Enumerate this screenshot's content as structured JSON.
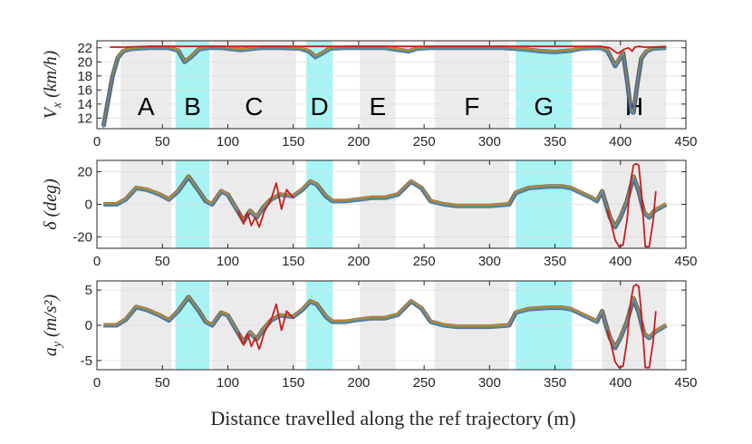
{
  "chart_data": {
    "type": "line",
    "xlabel": "Distance travelled along the ref trajectory (m)",
    "xlim": [
      0,
      450
    ],
    "xticks": [
      0,
      50,
      100,
      150,
      200,
      250,
      300,
      350,
      400,
      450
    ],
    "colors": {
      "gray_region": "#ebebeb",
      "cyan_region": "#a8f4f4",
      "curve_base": "#4a4a4a",
      "curve_red": "#c81e1e",
      "curve_blue": "#4f7fc0",
      "curve_orange": "#d8892a",
      "curve_green": "#6aa84f"
    },
    "regions": [
      {
        "label": "A",
        "x0": 18,
        "x1": 57,
        "kind": "gray"
      },
      {
        "label": "B",
        "x0": 60,
        "x1": 86,
        "kind": "cyan"
      },
      {
        "label": "C",
        "x0": 88,
        "x1": 152,
        "kind": "gray"
      },
      {
        "label": "D",
        "x0": 160,
        "x1": 180,
        "kind": "cyan"
      },
      {
        "label": "E",
        "x0": 201,
        "x1": 228,
        "kind": "gray"
      },
      {
        "label": "F",
        "x0": 258,
        "x1": 315,
        "kind": "gray"
      },
      {
        "label": "G",
        "x0": 320,
        "x1": 363,
        "kind": "cyan"
      },
      {
        "label": "H",
        "x0": 386,
        "x1": 435,
        "kind": "gray"
      }
    ],
    "panels": [
      {
        "ylabel": "V_x (km/h)",
        "ylabel_parts": [
          "V",
          "x",
          " (km/h)"
        ],
        "ylim": [
          10.5,
          23
        ],
        "yticks": [
          12,
          14,
          16,
          18,
          20,
          22
        ],
        "show_region_labels": true,
        "series": [
          {
            "x": [
              5,
              8,
              12,
              16,
              20,
              25,
              30,
              40,
              55,
              62,
              67,
              72,
              78,
              85,
              95,
              110,
              125,
              140,
              155,
              162,
              167,
              172,
              178,
              190,
              220,
              238,
              245,
              255,
              280,
              310,
              325,
              340,
              350,
              362,
              370,
              385,
              390,
              393,
              396,
              399,
              402,
              405,
              408,
              410,
              413,
              416,
              420,
              425,
              435
            ],
            "y": [
              10.8,
              14,
              18,
              20.6,
              21.5,
              21.8,
              21.9,
              22.0,
              22.0,
              21.6,
              20.0,
              20.7,
              21.8,
              22.0,
              22.0,
              21.7,
              22.0,
              22.0,
              21.9,
              21.5,
              20.7,
              21.2,
              21.9,
              22.0,
              22.0,
              21.5,
              21.9,
              22.0,
              22.0,
              22.0,
              21.8,
              21.5,
              21.4,
              21.6,
              21.9,
              22.0,
              21.6,
              20.5,
              19.4,
              20.3,
              21.3,
              17.5,
              13.0,
              12.8,
              17.0,
              20.5,
              21.5,
              21.9,
              22.0
            ]
          },
          {
            "x": [
              10,
              20,
              40,
              60,
              100,
              150,
              200,
              250,
              300,
              350,
              385,
              392,
              398,
              403,
              406,
              409,
              411,
              414,
              418,
              435
            ],
            "y": [
              22.1,
              22.1,
              22.2,
              22.2,
              22.2,
              22.2,
              22.2,
              22.2,
              22.2,
              22.2,
              22.2,
              22.0,
              21.2,
              21.8,
              22.0,
              21.5,
              22.1,
              22.2,
              22.1,
              22.1
            ]
          }
        ]
      },
      {
        "ylabel": "δ (deg)",
        "ylabel_parts": [
          "δ",
          "",
          " (deg)"
        ],
        "ylim": [
          -27,
          27
        ],
        "yticks": [
          -20,
          0,
          20
        ],
        "show_region_labels": false,
        "series": [
          {
            "x": [
              5,
              15,
              22,
              30,
              38,
              48,
              55,
              62,
              70,
              78,
              83,
              88,
              95,
              100,
              106,
              112,
              117,
              122,
              127,
              133,
              140,
              150,
              157,
              163,
              168,
              175,
              180,
              190,
              200,
              210,
              220,
              230,
              240,
              248,
              255,
              265,
              275,
              285,
              300,
              315,
              320,
              330,
              345,
              355,
              362,
              370,
              378,
              382,
              386,
              389,
              392,
              396,
              400,
              405,
              410,
              414,
              418,
              422,
              426,
              435
            ],
            "y": [
              0,
              0,
              3,
              10,
              9,
              6,
              3,
              8,
              17,
              8,
              2,
              0,
              8,
              6,
              -2,
              -10,
              -4,
              -8,
              -2,
              3,
              6,
              5,
              9,
              14,
              12,
              5,
              2,
              2,
              3,
              4,
              4,
              6,
              14,
              10,
              2,
              0,
              -1,
              -1,
              -1,
              0,
              7,
              10,
              11,
              11,
              10,
              7,
              4,
              2,
              8,
              0,
              -8,
              -14,
              -8,
              2,
              17,
              8,
              -5,
              -8,
              -4,
              0
            ]
          },
          {
            "x": [
              108,
              112,
              115,
              118,
              121,
              124,
              128,
              133,
              137,
              141,
              145,
              150
            ],
            "y": [
              -4,
              -12,
              -5,
              -13,
              -8,
              -14,
              -4,
              3,
              13,
              -3,
              9,
              4
            ]
          },
          {
            "x": [
              390,
              393,
              396,
              399,
              402,
              405,
              408,
              410,
              412,
              414,
              416,
              419,
              422,
              425,
              427
            ],
            "y": [
              -3,
              -12,
              -22,
              -26,
              -25,
              -10,
              15,
              24,
              25,
              24,
              8,
              -26,
              -26,
              -10,
              8
            ]
          }
        ]
      },
      {
        "ylabel": "a_y (m/s²)",
        "ylabel_parts": [
          "a",
          "y",
          " (m/s²)"
        ],
        "ylim": [
          -6.3,
          6.3
        ],
        "yticks": [
          -5,
          0,
          5
        ],
        "show_region_labels": false,
        "series": [
          {
            "x": [
              5,
              15,
              22,
              30,
              38,
              48,
              55,
              62,
              70,
              78,
              83,
              88,
              95,
              100,
              106,
              112,
              117,
              122,
              127,
              133,
              140,
              150,
              157,
              163,
              168,
              175,
              180,
              190,
              200,
              210,
              220,
              230,
              240,
              248,
              255,
              265,
              275,
              285,
              300,
              315,
              320,
              330,
              345,
              355,
              362,
              370,
              378,
              382,
              386,
              389,
              392,
              396,
              400,
              405,
              410,
              414,
              418,
              422,
              426,
              435
            ],
            "y": [
              0,
              0,
              0.8,
              2.6,
              2.2,
              1.4,
              0.7,
              2.0,
              4.0,
              2.0,
              0.5,
              0,
              1.8,
              1.4,
              -0.5,
              -2.4,
              -1.0,
              -2.0,
              -0.6,
              0.7,
              1.4,
              1.2,
              2.2,
              3.4,
              3.0,
              1.2,
              0.5,
              0.5,
              0.8,
              1.0,
              1.0,
              1.5,
              3.4,
              2.4,
              0.5,
              0,
              -0.2,
              -0.2,
              -0.2,
              0,
              1.8,
              2.3,
              2.5,
              2.5,
              2.3,
              1.6,
              0.9,
              0.5,
              2.0,
              0,
              -1.8,
              -3.2,
              -1.8,
              0.5,
              3.8,
              1.8,
              -1.2,
              -1.8,
              -1.0,
              0
            ]
          },
          {
            "x": [
              108,
              112,
              115,
              118,
              121,
              124,
              128,
              133,
              137,
              141,
              145,
              150
            ],
            "y": [
              -1,
              -2.8,
              -1.2,
              -3.0,
              -1.8,
              -3.4,
              -1,
              0.7,
              3.0,
              -0.7,
              2.0,
              1.0
            ]
          },
          {
            "x": [
              390,
              393,
              396,
              399,
              402,
              405,
              408,
              410,
              412,
              414,
              416,
              419,
              422,
              425,
              427
            ],
            "y": [
              -0.7,
              -2.8,
              -5.2,
              -6.0,
              -5.8,
              -2.3,
              3.5,
              5.5,
              5.8,
              5.5,
              1.8,
              -6.0,
              -6.0,
              -2.3,
              2.0
            ]
          }
        ]
      }
    ]
  }
}
